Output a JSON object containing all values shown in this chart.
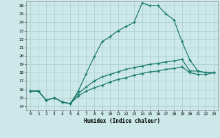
{
  "xlabel": "Humidex (Indice chaleur)",
  "bg_color": "#cce8e8",
  "grid_color": "#aacccc",
  "line_color": "#1a7a6e",
  "xlim": [
    -0.5,
    23.5
  ],
  "ylim": [
    13.5,
    26.5
  ],
  "xticks": [
    0,
    1,
    2,
    3,
    4,
    5,
    6,
    7,
    8,
    9,
    10,
    11,
    12,
    13,
    14,
    15,
    16,
    17,
    18,
    19,
    20,
    21,
    22,
    23
  ],
  "yticks": [
    14,
    15,
    16,
    17,
    18,
    19,
    20,
    21,
    22,
    23,
    24,
    25,
    26
  ],
  "curve1_x": [
    0,
    1,
    2,
    3,
    4,
    5,
    6,
    7,
    8,
    9,
    10,
    11,
    12,
    13,
    14,
    15,
    16,
    17,
    18,
    19,
    20,
    21,
    22,
    23
  ],
  "curve1_y": [
    15.8,
    15.8,
    14.7,
    15.0,
    14.5,
    14.3,
    15.8,
    17.9,
    19.9,
    21.7,
    22.3,
    23.0,
    23.5,
    24.0,
    26.3,
    26.0,
    26.0,
    25.0,
    24.3,
    21.7,
    19.5,
    18.2,
    18.0,
    18.0
  ],
  "curve2_x": [
    0,
    1,
    2,
    3,
    4,
    5,
    6,
    7,
    8,
    9,
    10,
    11,
    12,
    13,
    14,
    15,
    16,
    17,
    18,
    19,
    20,
    21,
    22,
    23
  ],
  "curve2_y": [
    15.8,
    15.8,
    14.7,
    15.0,
    14.5,
    14.3,
    15.5,
    16.3,
    17.0,
    17.5,
    17.8,
    18.1,
    18.4,
    18.6,
    18.8,
    19.0,
    19.1,
    19.3,
    19.4,
    19.6,
    18.2,
    18.2,
    18.0,
    18.0
  ],
  "curve3_x": [
    0,
    1,
    2,
    3,
    4,
    5,
    6,
    7,
    8,
    9,
    10,
    11,
    12,
    13,
    14,
    15,
    16,
    17,
    18,
    19,
    20,
    21,
    22,
    23
  ],
  "curve3_y": [
    15.8,
    15.8,
    14.7,
    15.0,
    14.5,
    14.3,
    15.2,
    15.8,
    16.2,
    16.5,
    16.9,
    17.2,
    17.4,
    17.7,
    17.9,
    18.1,
    18.2,
    18.4,
    18.5,
    18.7,
    18.0,
    17.8,
    17.8,
    18.0
  ]
}
